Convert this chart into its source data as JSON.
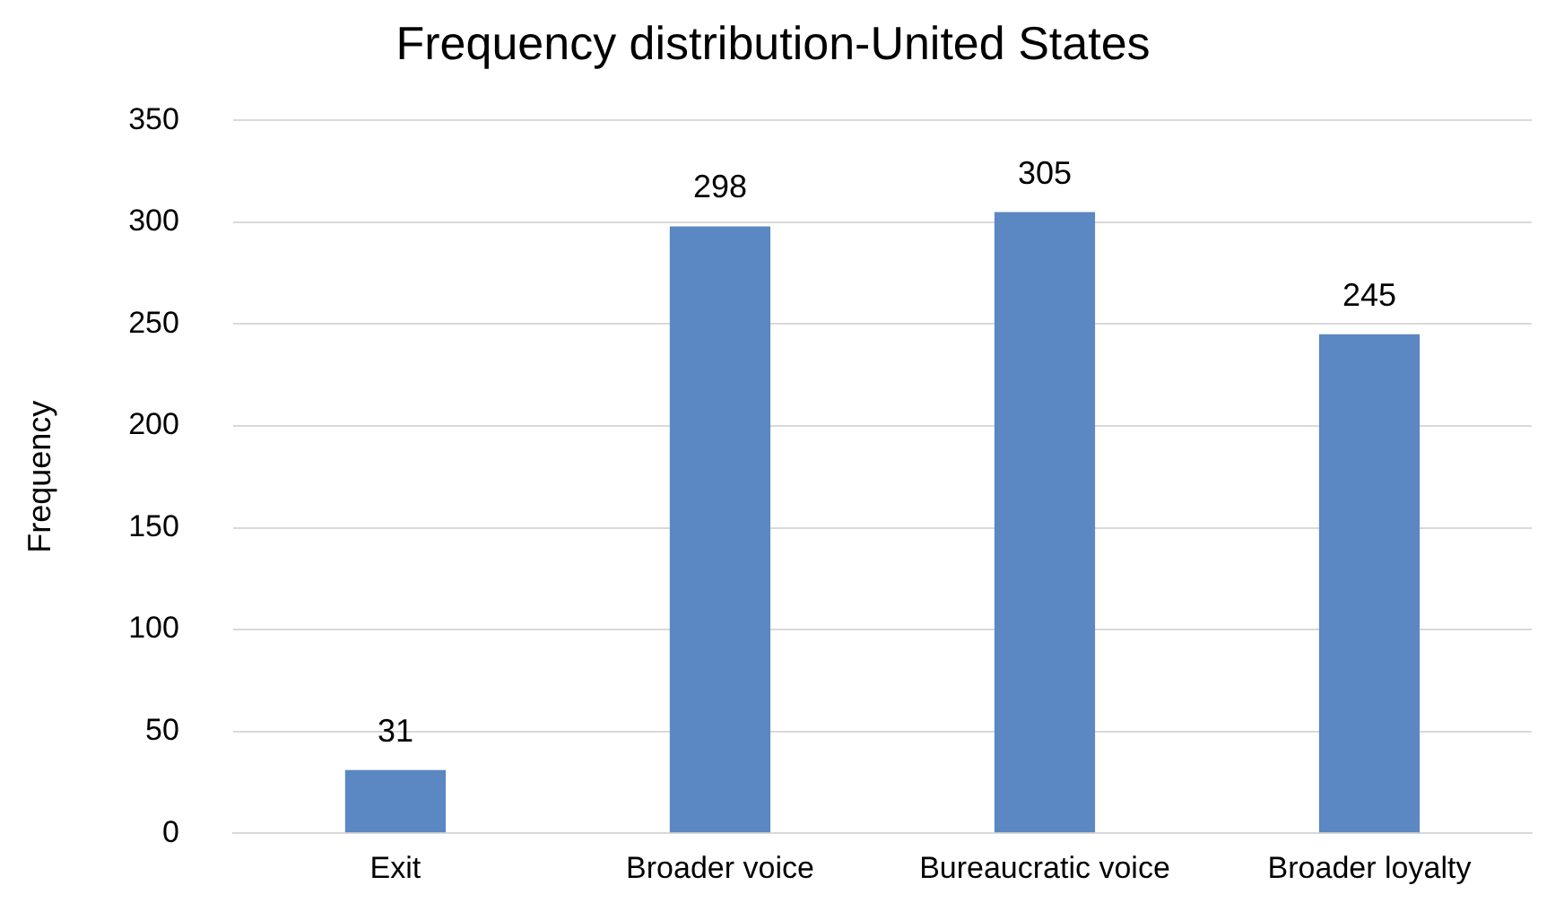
{
  "chart_data": {
    "type": "bar",
    "title": "Frequency distribution-United States",
    "ylabel": "Frequency",
    "categories": [
      "Exit",
      "Broader voice",
      "Bureaucratic voice",
      "Broader loyalty"
    ],
    "values": [
      31,
      298,
      305,
      245
    ],
    "color": "#5b87c2",
    "ylim": [
      0,
      350
    ],
    "yticks": [
      0,
      50,
      100,
      150,
      200,
      250,
      300,
      350
    ],
    "grid": "y",
    "data_labels": true
  }
}
